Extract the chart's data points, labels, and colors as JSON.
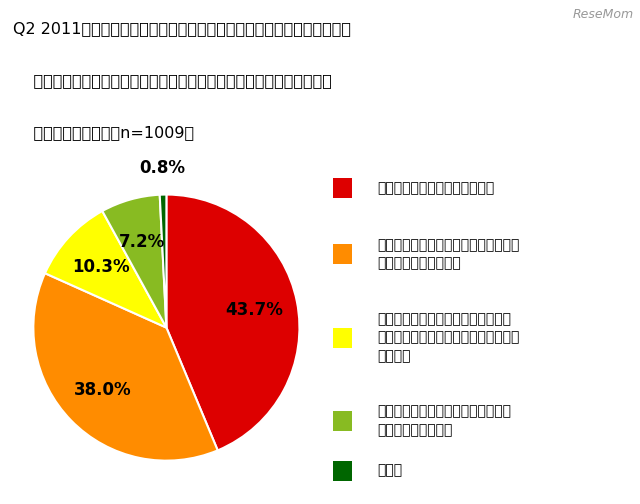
{
  "title_lines": [
    "Q2 2011年度から小学校で外国語活動（実質、英語活動）が必修化され",
    "    ますが、英語は「教科」としての導入ではありません。これについて",
    "    どう思いますか。（n=1009）"
  ],
  "watermark": "ReseMom",
  "slices": [
    43.7,
    38.0,
    10.3,
    7.2,
    0.8
  ],
  "colors": [
    "#DD0000",
    "#FF8C00",
    "#FFFF00",
    "#88BB22",
    "#006600"
  ],
  "labels_pct": [
    "43.7%",
    "38.0%",
    "10.3%",
    "7.2%",
    "0.8%"
  ],
  "label_colors": [
    "black",
    "black",
    "black",
    "black",
    "black"
  ],
  "legend_labels_line1": [
    "英語は教科として導入すべき。",
    "教科としてではなく、英語に慣れさせ",
    "教科としての導入は、外国語活動必",
    "教科として導入するのでなければ、",
    "その他"
  ],
  "legend_labels_line2": [
    "",
    "る程度の授業が良い。",
    "修化の後、じっくり検証した上で決め",
    "やらない方がいい。",
    ""
  ],
  "legend_labels_line3": [
    "",
    "",
    "るべき。",
    "",
    ""
  ],
  "background_color": "#FFFFFF",
  "label_fontsize": 12,
  "title_fontsize": 11.5,
  "legend_fontsize": 10,
  "watermark_fontsize": 9
}
